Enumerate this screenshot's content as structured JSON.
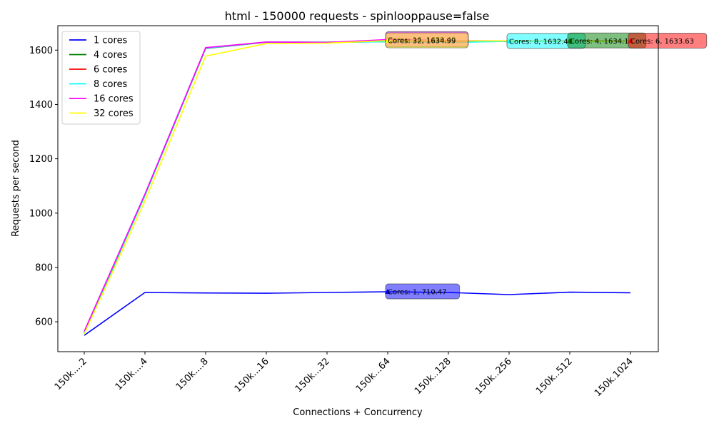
{
  "chart_data": {
    "type": "line",
    "title": "html - 150000 requests - spinlooppause=false",
    "xlabel": "Connections + Concurrency",
    "ylabel": "Requests per second",
    "categories": [
      "150k....2",
      "150k....4",
      "150k....8",
      "150k...16",
      "150k...32",
      "150k...64",
      "150k..128",
      "150k..256",
      "150k..512",
      "150k.1024"
    ],
    "ylim": [
      490,
      1690
    ],
    "yticks": [
      600,
      800,
      1000,
      1200,
      1400,
      1600
    ],
    "legend_position": "top-left",
    "grid": false,
    "series": [
      {
        "name": "1 cores",
        "color": "#0000ff",
        "values": [
          550,
          708,
          706,
          705,
          708,
          710.47,
          708,
          700,
          709,
          707
        ]
      },
      {
        "name": "4 cores",
        "color": "#008000",
        "values": [
          558,
          1065,
          1606,
          1629,
          1629,
          1631,
          1632,
          1632,
          1634.14,
          1633
        ]
      },
      {
        "name": "6 cores",
        "color": "#ff0000",
        "values": [
          562,
          1068,
          1607,
          1630,
          1629,
          1633,
          1633,
          1632,
          1633,
          1633.63
        ]
      },
      {
        "name": "8 cores",
        "color": "#00ffff",
        "values": [
          560,
          1066,
          1607,
          1630,
          1629,
          1631,
          1628,
          1632.48,
          1632,
          1632
        ]
      },
      {
        "name": "16 cores",
        "color": "#ff00ff",
        "values": [
          565,
          1070,
          1609,
          1630,
          1628,
          1639,
          1635,
          1634,
          1634,
          1633
        ]
      },
      {
        "name": "32 cores",
        "color": "#ffff00",
        "values": [
          555,
          1045,
          1578,
          1624,
          1626,
          1634.99,
          1634,
          1634,
          1633,
          1633
        ]
      }
    ],
    "annotations": [
      {
        "text": "Cores: 1, 710.47",
        "series": 0,
        "index": 5
      },
      {
        "text": "Cores: 16, 1639.40",
        "series": 4,
        "index": 5
      },
      {
        "text": "Cores: 32, 1634.99",
        "series": 5,
        "index": 5
      },
      {
        "text": "Cores: 8, 1632.48",
        "series": 3,
        "index": 7
      },
      {
        "text": "Cores: 4, 1634.14",
        "series": 1,
        "index": 8
      },
      {
        "text": "Cores: 6, 1633.63",
        "series": 2,
        "index": 9
      }
    ]
  }
}
